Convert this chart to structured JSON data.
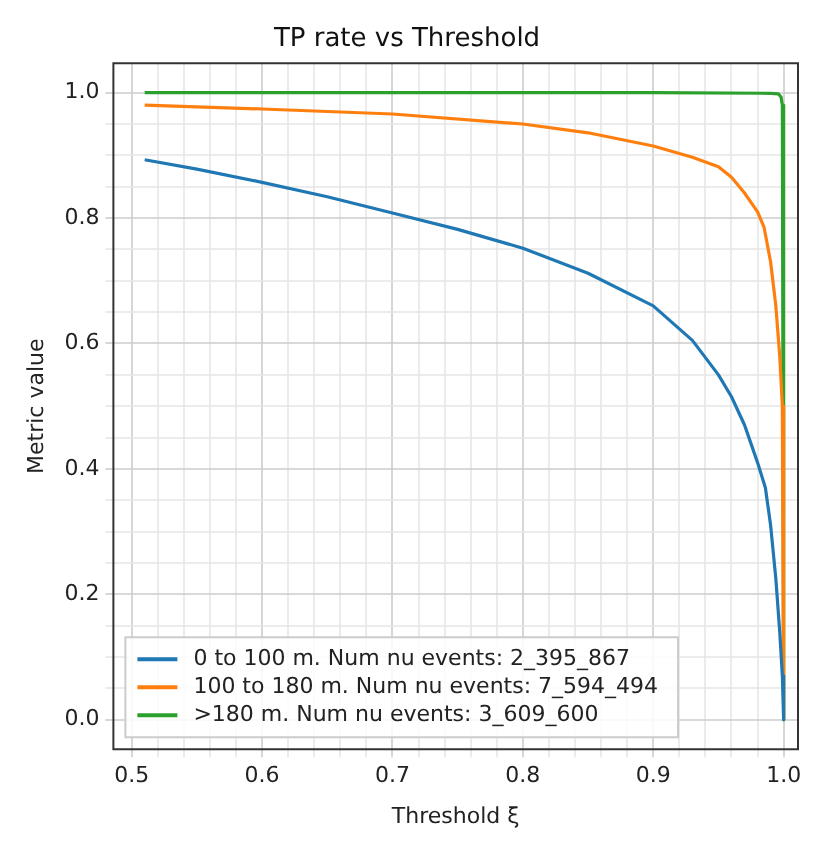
{
  "chart_data": {
    "type": "line",
    "title": "TP rate vs Threshold",
    "xlabel": "Threshold ξ",
    "ylabel": "Metric value",
    "xlim": [
      0.486,
      1.011
    ],
    "ylim": [
      -0.047,
      1.047
    ],
    "xticks": [
      0.5,
      {
        "value": 0.52,
        "label": null
      },
      {
        "value": 0.54,
        "label": null
      },
      {
        "value": 0.56,
        "label": null
      },
      {
        "value": 0.58,
        "label": null
      },
      0.6,
      {
        "value": 0.62,
        "label": null
      },
      {
        "value": 0.64,
        "label": null
      },
      {
        "value": 0.66,
        "label": null
      },
      {
        "value": 0.68,
        "label": null
      },
      0.7,
      {
        "value": 0.72,
        "label": null
      },
      {
        "value": 0.74,
        "label": null
      },
      {
        "value": 0.76,
        "label": null
      },
      {
        "value": 0.78,
        "label": null
      },
      0.8,
      {
        "value": 0.82,
        "label": null
      },
      {
        "value": 0.84,
        "label": null
      },
      {
        "value": 0.86,
        "label": null
      },
      {
        "value": 0.88,
        "label": null
      },
      0.9,
      {
        "value": 0.92,
        "label": null
      },
      {
        "value": 0.94,
        "label": null
      },
      {
        "value": 0.96,
        "label": null
      },
      {
        "value": 0.98,
        "label": null
      },
      {
        "value": 1.0,
        "label": "1.0"
      }
    ],
    "yticks": [
      {
        "value": 0.0,
        "label": "0.0"
      },
      {
        "value": 0.05,
        "label": null
      },
      {
        "value": 0.1,
        "label": null
      },
      {
        "value": 0.15,
        "label": null
      },
      0.2,
      {
        "value": 0.25,
        "label": null
      },
      {
        "value": 0.3,
        "label": null
      },
      {
        "value": 0.35,
        "label": null
      },
      0.4,
      {
        "value": 0.45,
        "label": null
      },
      {
        "value": 0.5,
        "label": null
      },
      {
        "value": 0.55,
        "label": null
      },
      0.6,
      {
        "value": 0.65,
        "label": null
      },
      {
        "value": 0.7,
        "label": null
      },
      {
        "value": 0.75,
        "label": null
      },
      0.8,
      {
        "value": 0.85,
        "label": null
      },
      {
        "value": 0.9,
        "label": null
      },
      {
        "value": 0.95,
        "label": null
      },
      {
        "value": 1.0,
        "label": "1.0"
      }
    ],
    "grid": true,
    "legend": "bottom left",
    "marker": "none",
    "line_style": "solid",
    "series": [
      {
        "name": "0 to 100 m. Num nu events: 2_395_867",
        "color": "#1f77b4",
        "x": [
          0.51,
          0.55,
          0.6,
          0.65,
          0.7,
          0.75,
          0.8,
          0.85,
          0.9,
          0.93,
          0.95,
          0.96,
          0.97,
          0.98,
          0.986,
          0.99,
          0.994,
          0.997,
          0.999,
          1.0
        ],
        "values": [
          0.893,
          0.878,
          0.857,
          0.834,
          0.808,
          0.782,
          0.752,
          0.712,
          0.66,
          0.605,
          0.55,
          0.515,
          0.47,
          0.41,
          0.37,
          0.31,
          0.225,
          0.14,
          0.07,
          0.0
        ]
      },
      {
        "name": "100 to 180 m. Num nu events: 7_594_494",
        "color": "#ff7f0e",
        "x": [
          0.51,
          0.6,
          0.7,
          0.8,
          0.85,
          0.9,
          0.93,
          0.95,
          0.96,
          0.97,
          0.98,
          0.985,
          0.99,
          0.994,
          0.997,
          0.999,
          1.0
        ],
        "values": [
          0.98,
          0.974,
          0.966,
          0.95,
          0.936,
          0.915,
          0.897,
          0.882,
          0.865,
          0.84,
          0.81,
          0.785,
          0.73,
          0.66,
          0.58,
          0.5,
          0.0
        ]
      },
      {
        "name": ">180 m. Num nu events: 3_609_600",
        "color": "#2ca02c",
        "x": [
          0.51,
          0.7,
          0.9,
          0.99,
          0.996,
          0.998,
          0.999,
          1.0
        ],
        "values": [
          1.0,
          1.0,
          1.0,
          0.999,
          0.998,
          0.993,
          0.98,
          0.0
        ]
      }
    ]
  }
}
